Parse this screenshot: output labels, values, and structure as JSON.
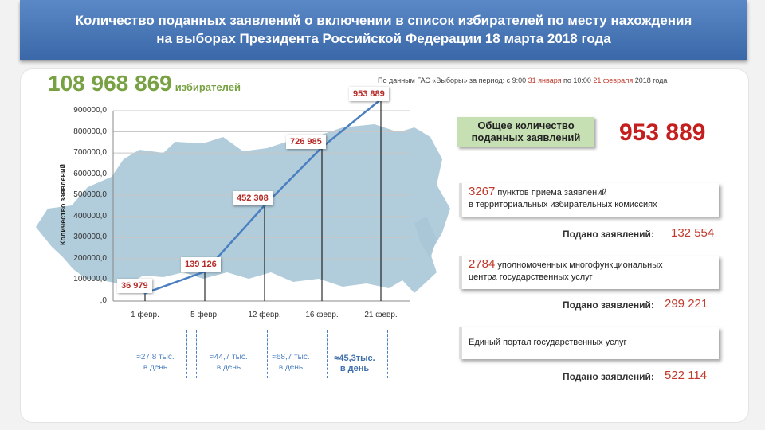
{
  "header": {
    "line1": "Количество поданных заявлений о включении в список избирателей по месту нахождения",
    "line2": "на выборах Президента Российской Федерации 18 марта 2018 года"
  },
  "voters": {
    "count": "108 968 869",
    "label": "избирателей"
  },
  "source": {
    "prefix": "По данным ГАС «Выборы» за период: с 9:00 ",
    "start_date": "31 января",
    "middle": " по 10:00 ",
    "end_date": "21 февраля",
    "suffix": " 2018 года"
  },
  "chart_data": {
    "type": "line",
    "ylabel": "Количество заявлений",
    "ylim": [
      0,
      900000
    ],
    "y_ticks": [
      "900000,0",
      "800000,0",
      "700000,0",
      "600000,0",
      "500000,0",
      "400000,0",
      "300000,0",
      "200000,0",
      "100000,0",
      ",0"
    ],
    "categories": [
      "1 февр.",
      "5 февр.",
      "12 февр.",
      "16 февр.",
      "21 февр."
    ],
    "values": [
      36979,
      139126,
      452308,
      726985,
      953889
    ],
    "value_labels": [
      "36 979",
      "139 126",
      "452 308",
      "726 985",
      "953 889"
    ],
    "line_color": "#4a7fc1",
    "grid": true
  },
  "rates": [
    {
      "line1": "≈27,8 тыс.",
      "line2": "в день"
    },
    {
      "line1": "≈44,7 тыс.",
      "line2": "в день"
    },
    {
      "line1": "≈68,7 тыс.",
      "line2": "в день"
    },
    {
      "line1": "≈45,3тыс.",
      "line2": "в день"
    }
  ],
  "total": {
    "label": "Общее количество поданных заявлений",
    "value": "953 889"
  },
  "channels": [
    {
      "num": "3267",
      "text": " пунктов приема заявлений",
      "text2": "в территориальных избирательных комиссиях",
      "submitted_label": "Подано заявлений:",
      "submitted": "132 554"
    },
    {
      "num": "2784",
      "text": " уполномоченных многофункциональных",
      "text2": "центра государственных услуг",
      "submitted_label": "Подано заявлений:",
      "submitted": "299 221"
    },
    {
      "num": "",
      "text": "Единый портал государственных услуг",
      "text2": "",
      "submitted_label": "Подано заявлений:",
      "submitted": "522 114"
    }
  ],
  "colors": {
    "accent_green": "#77a142",
    "accent_red": "#c41e1e",
    "header_blue": "#4a78b8",
    "map_fill": "#a9c7d6"
  }
}
